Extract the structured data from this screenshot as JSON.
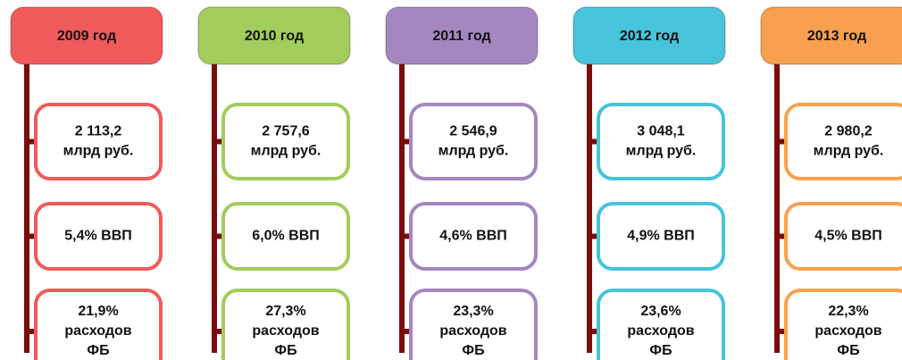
{
  "columns": [
    {
      "header": "2009 год",
      "color": "#ef5b5b",
      "items": [
        {
          "lines": [
            "2 113,2",
            "млрд руб."
          ]
        },
        {
          "lines": [
            "5,4% ВВП"
          ]
        },
        {
          "lines": [
            "21,9%",
            "расходов",
            "ФБ"
          ]
        }
      ]
    },
    {
      "header": "2010 год",
      "color": "#a2cc5c",
      "items": [
        {
          "lines": [
            "2 757,6",
            "млрд руб."
          ]
        },
        {
          "lines": [
            "6,0% ВВП"
          ]
        },
        {
          "lines": [
            "27,3%",
            "расходов",
            "ФБ"
          ]
        }
      ]
    },
    {
      "header": "2011 год",
      "color": "#a487c0",
      "items": [
        {
          "lines": [
            "2 546,9",
            "млрд руб."
          ]
        },
        {
          "lines": [
            "4,6% ВВП"
          ]
        },
        {
          "lines": [
            "23,3%",
            "расходов",
            "ФБ"
          ]
        }
      ]
    },
    {
      "header": "2012 год",
      "color": "#47c3dc",
      "items": [
        {
          "lines": [
            "3 048,1",
            "млрд руб."
          ]
        },
        {
          "lines": [
            "4,9% ВВП"
          ]
        },
        {
          "lines": [
            "23,6%",
            "расходов",
            "ФБ"
          ]
        }
      ]
    },
    {
      "header": "2013 год",
      "color": "#f8a04f",
      "items": [
        {
          "lines": [
            "2 980,2",
            "млрд руб."
          ]
        },
        {
          "lines": [
            "4,5% ВВП"
          ]
        },
        {
          "lines": [
            "22,3%",
            "расходов",
            "ФБ"
          ]
        }
      ]
    }
  ]
}
